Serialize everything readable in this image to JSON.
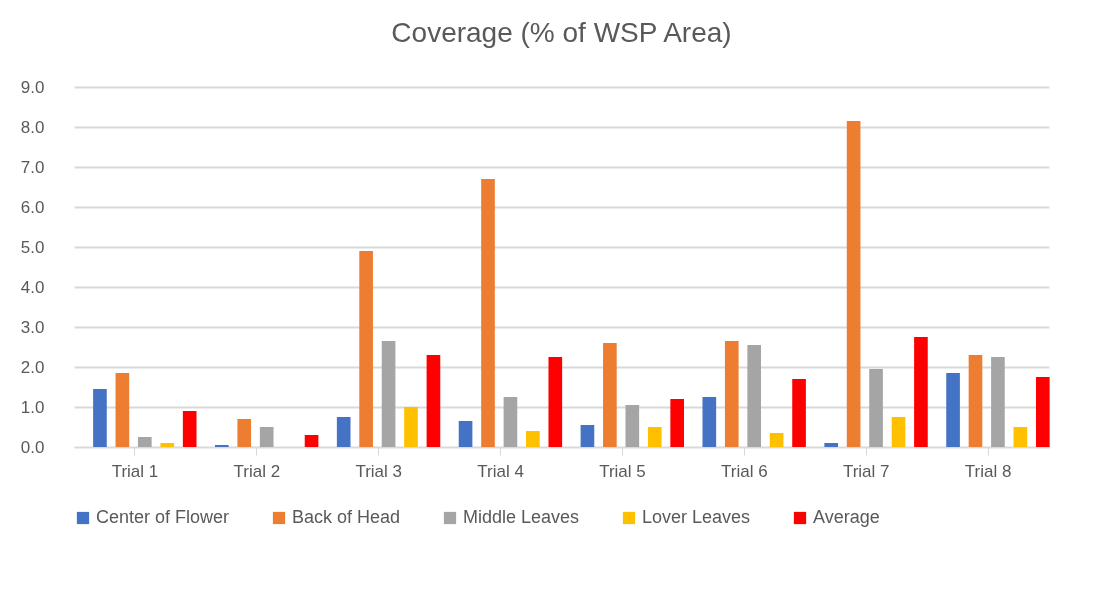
{
  "chart_data": {
    "type": "bar",
    "title": "Coverage (% of WSP Area)",
    "categories": [
      "Trial 1",
      "Trial 2",
      "Trial 3",
      "Trial 4",
      "Trial 5",
      "Trial 6",
      "Trial 7",
      "Trial 8"
    ],
    "series": [
      {
        "name": "Center of Flower",
        "color": "#4472c4",
        "values": [
          1.45,
          0.05,
          0.75,
          0.65,
          0.55,
          1.25,
          0.1,
          1.85
        ]
      },
      {
        "name": "Back of Head",
        "color": "#ed7d31",
        "values": [
          1.85,
          0.7,
          4.9,
          6.7,
          2.6,
          2.65,
          8.15,
          2.3
        ]
      },
      {
        "name": "Middle Leaves",
        "color": "#a5a5a5",
        "values": [
          0.25,
          0.5,
          2.65,
          1.25,
          1.05,
          2.55,
          1.95,
          2.25
        ]
      },
      {
        "name": "Lover Leaves",
        "color": "#ffc000",
        "values": [
          0.1,
          0,
          1.0,
          0.4,
          0.5,
          0.35,
          0.75,
          0.5
        ]
      },
      {
        "name": "Average",
        "color": "#ff0000",
        "values": [
          0.9,
          0.3,
          2.3,
          2.25,
          1.2,
          1.7,
          2.75,
          1.75
        ]
      }
    ],
    "ylim": [
      0,
      9
    ],
    "yticks": [
      {
        "value": 0,
        "label": "0.0"
      },
      {
        "value": 1,
        "label": "1.0"
      },
      {
        "value": 2,
        "label": "2.0"
      },
      {
        "value": 3,
        "label": "3.0"
      },
      {
        "value": 4,
        "label": "4.0"
      },
      {
        "value": 5,
        "label": "5.0"
      },
      {
        "value": 6,
        "label": "6.0"
      },
      {
        "value": 7,
        "label": "7.0"
      },
      {
        "value": 8,
        "label": "8.0"
      },
      {
        "value": 9,
        "label": "9.0"
      }
    ],
    "grid": "y",
    "legend": "bottom"
  }
}
